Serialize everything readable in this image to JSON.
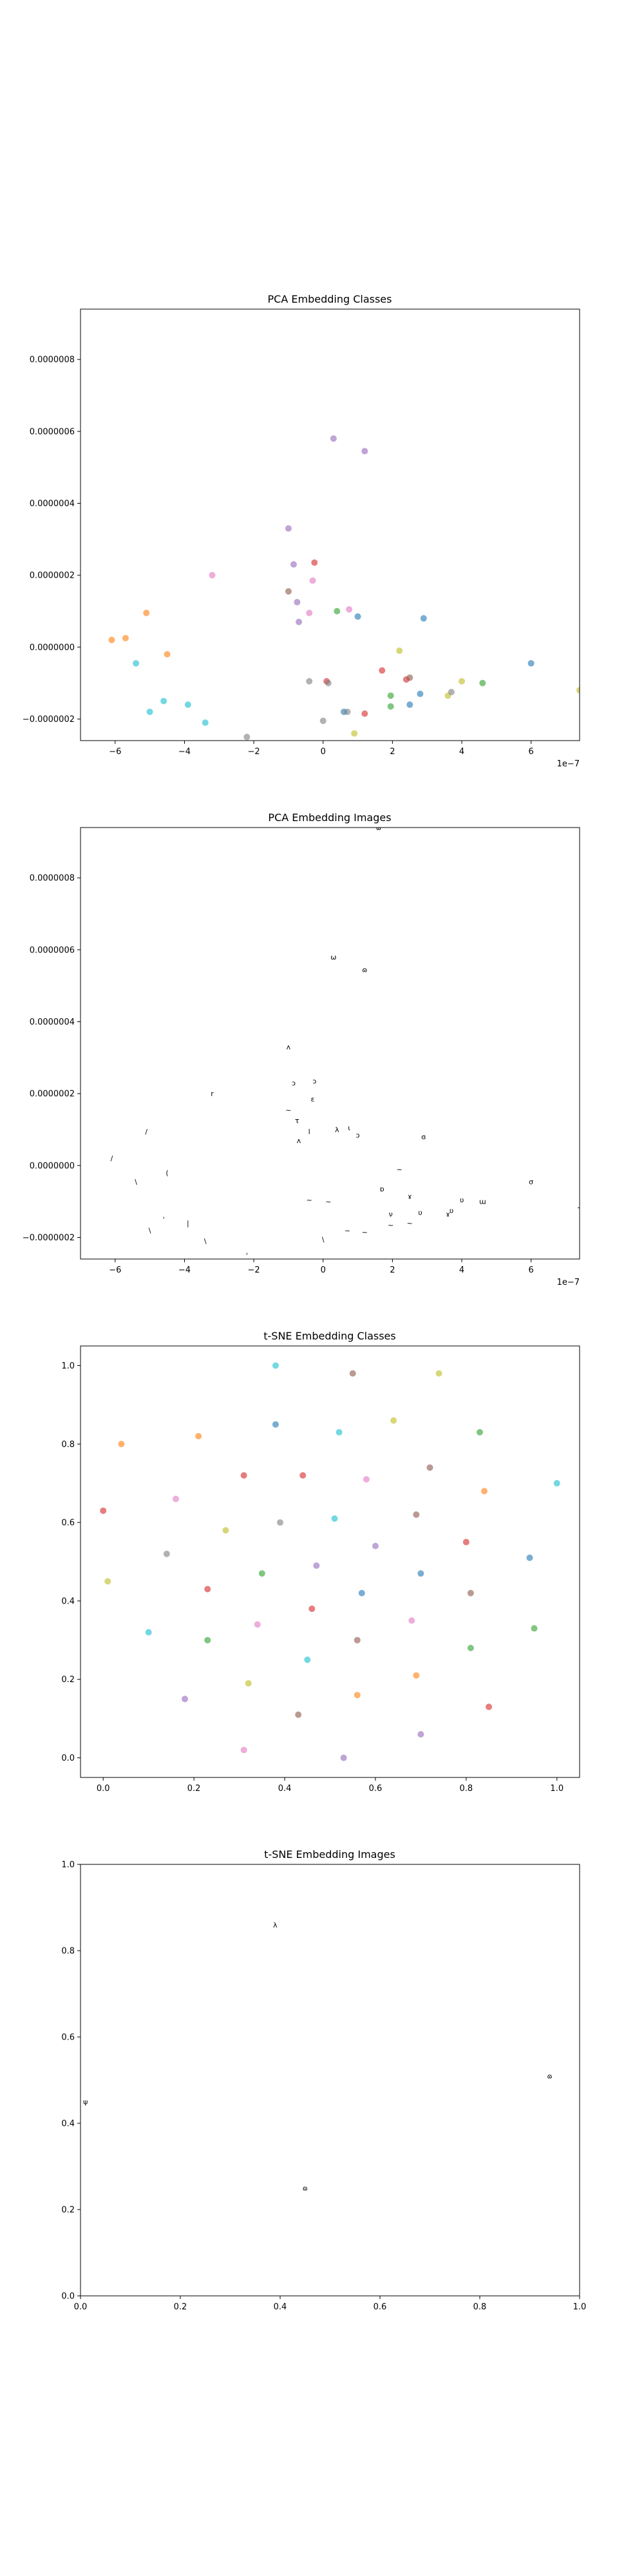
{
  "chart_data": [
    {
      "type": "scatter",
      "title": "PCA Embedding Classes",
      "offset_text": "1e−7",
      "xlim": [
        -7.0,
        7.4
      ],
      "ylim": [
        -2.6,
        9.4
      ],
      "xticks": [
        -6,
        -4,
        -2,
        0,
        2,
        4,
        6
      ],
      "xtick_labels": [
        "−6",
        "−4",
        "−2",
        "0",
        "2",
        "4",
        "6"
      ],
      "yticks": [
        -2,
        0,
        2,
        4,
        6,
        8
      ],
      "ytick_labels": [
        "−0.0000002",
        "0.0000000",
        "0.0000002",
        "0.0000004",
        "0.0000006",
        "0.0000008"
      ],
      "grid": false,
      "points": [
        {
          "x": -6.1,
          "y": 0.2,
          "color": "#ff7f0e"
        },
        {
          "x": -5.7,
          "y": 0.25,
          "color": "#ff7f0e"
        },
        {
          "x": -5.4,
          "y": -0.45,
          "color": "#17becf"
        },
        {
          "x": -5.1,
          "y": 0.95,
          "color": "#ff7f0e"
        },
        {
          "x": -5.0,
          "y": -1.8,
          "color": "#17becf"
        },
        {
          "x": -4.6,
          "y": -1.5,
          "color": "#17becf"
        },
        {
          "x": -4.5,
          "y": -0.2,
          "color": "#ff7f0e"
        },
        {
          "x": -3.9,
          "y": -1.6,
          "color": "#17becf"
        },
        {
          "x": -3.4,
          "y": -2.1,
          "color": "#17becf"
        },
        {
          "x": -3.2,
          "y": 2.0,
          "color": "#e377c2"
        },
        {
          "x": -2.2,
          "y": -2.5,
          "color": "#7f7f7f"
        },
        {
          "x": -1.0,
          "y": 3.3,
          "color": "#9467bd"
        },
        {
          "x": -1.0,
          "y": 1.55,
          "color": "#8c564b"
        },
        {
          "x": -0.85,
          "y": 2.3,
          "color": "#9467bd"
        },
        {
          "x": -0.75,
          "y": 1.25,
          "color": "#9467bd"
        },
        {
          "x": -0.7,
          "y": 0.7,
          "color": "#9467bd"
        },
        {
          "x": -0.4,
          "y": 0.95,
          "color": "#e377c2"
        },
        {
          "x": -0.4,
          "y": -0.95,
          "color": "#7f7f7f"
        },
        {
          "x": -0.3,
          "y": 1.85,
          "color": "#e377c2"
        },
        {
          "x": -0.25,
          "y": 2.35,
          "color": "#d62728"
        },
        {
          "x": 0.0,
          "y": -2.05,
          "color": "#7f7f7f"
        },
        {
          "x": 0.1,
          "y": -0.95,
          "color": "#d62728"
        },
        {
          "x": 0.15,
          "y": -1.0,
          "color": "#7f7f7f"
        },
        {
          "x": 0.3,
          "y": 5.8,
          "color": "#9467bd"
        },
        {
          "x": 0.4,
          "y": 1.0,
          "color": "#2ca02c"
        },
        {
          "x": 0.6,
          "y": -1.8,
          "color": "#1f77b4"
        },
        {
          "x": 0.7,
          "y": -1.8,
          "color": "#7f7f7f"
        },
        {
          "x": 0.75,
          "y": 1.05,
          "color": "#e377c2"
        },
        {
          "x": 0.9,
          "y": -2.4,
          "color": "#bcbd22"
        },
        {
          "x": 1.0,
          "y": 0.85,
          "color": "#1f77b4"
        },
        {
          "x": 1.2,
          "y": -1.85,
          "color": "#d62728"
        },
        {
          "x": 1.2,
          "y": 5.45,
          "color": "#9467bd"
        },
        {
          "x": 1.7,
          "y": -0.65,
          "color": "#d62728"
        },
        {
          "x": 1.95,
          "y": -1.35,
          "color": "#2ca02c"
        },
        {
          "x": 1.95,
          "y": -1.65,
          "color": "#2ca02c"
        },
        {
          "x": 2.2,
          "y": -0.1,
          "color": "#bcbd22"
        },
        {
          "x": 2.4,
          "y": -0.9,
          "color": "#d62728"
        },
        {
          "x": 2.5,
          "y": -0.85,
          "color": "#8c564b"
        },
        {
          "x": 2.5,
          "y": -1.6,
          "color": "#1f77b4"
        },
        {
          "x": 2.8,
          "y": -1.3,
          "color": "#1f77b4"
        },
        {
          "x": 2.9,
          "y": 0.8,
          "color": "#1f77b4"
        },
        {
          "x": 3.6,
          "y": -1.35,
          "color": "#bcbd22"
        },
        {
          "x": 3.7,
          "y": -1.25,
          "color": "#7f7f7f"
        },
        {
          "x": 4.0,
          "y": -0.95,
          "color": "#bcbd22"
        },
        {
          "x": 4.6,
          "y": -1.0,
          "color": "#2ca02c"
        },
        {
          "x": 6.0,
          "y": -0.45,
          "color": "#1f77b4"
        },
        {
          "x": 7.4,
          "y": -1.2,
          "color": "#bcbd22"
        }
      ]
    },
    {
      "type": "scatter",
      "title": "PCA Embedding Images",
      "offset_text": "1e−7",
      "xlim": [
        -7.0,
        7.4
      ],
      "ylim": [
        -2.6,
        9.4
      ],
      "xticks": [
        -6,
        -4,
        -2,
        0,
        2,
        4,
        6
      ],
      "xtick_labels": [
        "−6",
        "−4",
        "−2",
        "0",
        "2",
        "4",
        "6"
      ],
      "yticks": [
        -2,
        0,
        2,
        4,
        6,
        8
      ],
      "ytick_labels": [
        "−0.0000002",
        "0.0000000",
        "0.0000002",
        "0.0000004",
        "0.0000006",
        "0.0000008"
      ],
      "grid": false,
      "points": [
        {
          "x": -6.1,
          "y": 0.2,
          "glyph": "/"
        },
        {
          "x": -5.4,
          "y": -0.45,
          "glyph": "\\"
        },
        {
          "x": -5.1,
          "y": 0.95,
          "glyph": "/"
        },
        {
          "x": -5.0,
          "y": -1.8,
          "glyph": "\\"
        },
        {
          "x": -4.6,
          "y": -1.5,
          "glyph": "'"
        },
        {
          "x": -4.5,
          "y": -0.2,
          "glyph": "("
        },
        {
          "x": -3.9,
          "y": -1.6,
          "glyph": "|"
        },
        {
          "x": -3.4,
          "y": -2.1,
          "glyph": "\\"
        },
        {
          "x": -3.2,
          "y": 2.0,
          "glyph": "r"
        },
        {
          "x": -2.2,
          "y": -2.5,
          "glyph": "'"
        },
        {
          "x": -1.0,
          "y": 3.3,
          "glyph": "ʌ"
        },
        {
          "x": -1.0,
          "y": 1.55,
          "glyph": "~"
        },
        {
          "x": -0.85,
          "y": 2.3,
          "glyph": "ɔ"
        },
        {
          "x": -0.75,
          "y": 1.25,
          "glyph": "τ"
        },
        {
          "x": -0.7,
          "y": 0.7,
          "glyph": "ʌ"
        },
        {
          "x": -0.4,
          "y": 0.95,
          "glyph": "l"
        },
        {
          "x": -0.4,
          "y": -0.95,
          "glyph": "~"
        },
        {
          "x": -0.3,
          "y": 1.85,
          "glyph": "ɛ"
        },
        {
          "x": -0.25,
          "y": 2.35,
          "glyph": "ɔ"
        },
        {
          "x": 0.0,
          "y": -2.05,
          "glyph": "\\"
        },
        {
          "x": 0.15,
          "y": -1.0,
          "glyph": "~"
        },
        {
          "x": 0.3,
          "y": 5.8,
          "glyph": "ω"
        },
        {
          "x": 0.4,
          "y": 1.0,
          "glyph": "λ"
        },
        {
          "x": 0.7,
          "y": -1.8,
          "glyph": "~"
        },
        {
          "x": 0.75,
          "y": 1.05,
          "glyph": "ι"
        },
        {
          "x": 1.0,
          "y": 0.85,
          "glyph": "ɔ"
        },
        {
          "x": 1.2,
          "y": -1.85,
          "glyph": "~"
        },
        {
          "x": 1.2,
          "y": 5.45,
          "glyph": "ɷ"
        },
        {
          "x": 1.7,
          "y": -0.65,
          "glyph": "ɒ"
        },
        {
          "x": 1.95,
          "y": -1.35,
          "glyph": "ν"
        },
        {
          "x": 1.95,
          "y": -1.65,
          "glyph": "~"
        },
        {
          "x": 2.2,
          "y": -0.1,
          "glyph": "~"
        },
        {
          "x": 2.5,
          "y": -0.85,
          "glyph": "ɤ"
        },
        {
          "x": 2.5,
          "y": -1.6,
          "glyph": "~"
        },
        {
          "x": 2.8,
          "y": -1.3,
          "glyph": "ʋ"
        },
        {
          "x": 2.9,
          "y": 0.8,
          "glyph": "ɞ"
        },
        {
          "x": 3.6,
          "y": -1.35,
          "glyph": "ɤ"
        },
        {
          "x": 3.7,
          "y": -1.25,
          "glyph": "ʋ"
        },
        {
          "x": 4.0,
          "y": -0.95,
          "glyph": "ʋ"
        },
        {
          "x": 4.6,
          "y": -1.0,
          "glyph": "ɯ"
        },
        {
          "x": 6.0,
          "y": -0.45,
          "glyph": "σ"
        },
        {
          "x": 7.4,
          "y": -1.2,
          "glyph": "τ"
        },
        {
          "x": 1.6,
          "y": 9.4,
          "glyph": "ɷ"
        }
      ]
    },
    {
      "type": "scatter",
      "title": "t-SNE Embedding Classes",
      "xlim": [
        -0.05,
        1.05
      ],
      "ylim": [
        -0.05,
        1.05
      ],
      "xticks": [
        0.0,
        0.2,
        0.4,
        0.6,
        0.8,
        1.0
      ],
      "xtick_labels": [
        "0.0",
        "0.2",
        "0.4",
        "0.6",
        "0.8",
        "1.0"
      ],
      "yticks": [
        0.0,
        0.2,
        0.4,
        0.6,
        0.8,
        1.0
      ],
      "ytick_labels": [
        "0.0",
        "0.2",
        "0.4",
        "0.6",
        "0.8",
        "1.0"
      ],
      "grid": false,
      "points": [
        {
          "x": 0.0,
          "y": 0.63,
          "color": "#d62728"
        },
        {
          "x": 0.01,
          "y": 0.45,
          "color": "#bcbd22"
        },
        {
          "x": 0.04,
          "y": 0.8,
          "color": "#ff7f0e"
        },
        {
          "x": 0.1,
          "y": 0.32,
          "color": "#17becf"
        },
        {
          "x": 0.14,
          "y": 0.52,
          "color": "#7f7f7f"
        },
        {
          "x": 0.16,
          "y": 0.66,
          "color": "#e377c2"
        },
        {
          "x": 0.18,
          "y": 0.15,
          "color": "#9467bd"
        },
        {
          "x": 0.21,
          "y": 0.82,
          "color": "#ff7f0e"
        },
        {
          "x": 0.23,
          "y": 0.43,
          "color": "#d62728"
        },
        {
          "x": 0.23,
          "y": 0.3,
          "color": "#2ca02c"
        },
        {
          "x": 0.27,
          "y": 0.58,
          "color": "#bcbd22"
        },
        {
          "x": 0.31,
          "y": 0.02,
          "color": "#e377c2"
        },
        {
          "x": 0.31,
          "y": 0.72,
          "color": "#d62728"
        },
        {
          "x": 0.32,
          "y": 0.19,
          "color": "#bcbd22"
        },
        {
          "x": 0.34,
          "y": 0.34,
          "color": "#e377c2"
        },
        {
          "x": 0.35,
          "y": 0.47,
          "color": "#2ca02c"
        },
        {
          "x": 0.38,
          "y": 1.0,
          "color": "#17becf"
        },
        {
          "x": 0.38,
          "y": 0.85,
          "color": "#1f77b4"
        },
        {
          "x": 0.39,
          "y": 0.6,
          "color": "#7f7f7f"
        },
        {
          "x": 0.43,
          "y": 0.11,
          "color": "#8c564b"
        },
        {
          "x": 0.44,
          "y": 0.72,
          "color": "#d62728"
        },
        {
          "x": 0.45,
          "y": 0.25,
          "color": "#17becf"
        },
        {
          "x": 0.46,
          "y": 0.38,
          "color": "#d62728"
        },
        {
          "x": 0.47,
          "y": 0.49,
          "color": "#9467bd"
        },
        {
          "x": 0.51,
          "y": 0.61,
          "color": "#17becf"
        },
        {
          "x": 0.52,
          "y": 0.83,
          "color": "#17becf"
        },
        {
          "x": 0.53,
          "y": 0.0,
          "color": "#9467bd"
        },
        {
          "x": 0.55,
          "y": 0.98,
          "color": "#8c564b"
        },
        {
          "x": 0.56,
          "y": 0.16,
          "color": "#ff7f0e"
        },
        {
          "x": 0.56,
          "y": 0.3,
          "color": "#8c564b"
        },
        {
          "x": 0.57,
          "y": 0.42,
          "color": "#1f77b4"
        },
        {
          "x": 0.58,
          "y": 0.71,
          "color": "#e377c2"
        },
        {
          "x": 0.6,
          "y": 0.54,
          "color": "#9467bd"
        },
        {
          "x": 0.64,
          "y": 0.86,
          "color": "#bcbd22"
        },
        {
          "x": 0.68,
          "y": 0.35,
          "color": "#e377c2"
        },
        {
          "x": 0.69,
          "y": 0.62,
          "color": "#8c564b"
        },
        {
          "x": 0.69,
          "y": 0.21,
          "color": "#ff7f0e"
        },
        {
          "x": 0.7,
          "y": 0.47,
          "color": "#1f77b4"
        },
        {
          "x": 0.7,
          "y": 0.06,
          "color": "#9467bd"
        },
        {
          "x": 0.72,
          "y": 0.74,
          "color": "#8c564b"
        },
        {
          "x": 0.74,
          "y": 0.98,
          "color": "#bcbd22"
        },
        {
          "x": 0.8,
          "y": 0.55,
          "color": "#d62728"
        },
        {
          "x": 0.81,
          "y": 0.42,
          "color": "#8c564b"
        },
        {
          "x": 0.81,
          "y": 0.28,
          "color": "#2ca02c"
        },
        {
          "x": 0.83,
          "y": 0.83,
          "color": "#2ca02c"
        },
        {
          "x": 0.84,
          "y": 0.68,
          "color": "#ff7f0e"
        },
        {
          "x": 0.85,
          "y": 0.13,
          "color": "#d62728"
        },
        {
          "x": 0.94,
          "y": 0.51,
          "color": "#1f77b4"
        },
        {
          "x": 0.95,
          "y": 0.33,
          "color": "#2ca02c"
        },
        {
          "x": 1.0,
          "y": 0.7,
          "color": "#17becf"
        }
      ]
    },
    {
      "type": "scatter",
      "title": "t-SNE Embedding Images",
      "xlim": [
        0.0,
        1.0
      ],
      "ylim": [
        0.0,
        1.0
      ],
      "xticks": [
        0.0,
        0.2,
        0.4,
        0.6,
        0.8,
        1.0
      ],
      "xtick_labels": [
        "0.0",
        "0.2",
        "0.4",
        "0.6",
        "0.8",
        "1.0"
      ],
      "yticks": [
        0.0,
        0.2,
        0.4,
        0.6,
        0.8,
        1.0
      ],
      "ytick_labels": [
        "0.0",
        "0.2",
        "0.4",
        "0.6",
        "0.8",
        "1.0"
      ],
      "grid": false,
      "points": [
        {
          "x": 0.39,
          "y": 0.86,
          "glyph": "λ"
        },
        {
          "x": 0.01,
          "y": 0.45,
          "glyph": "ψ"
        },
        {
          "x": 0.45,
          "y": 0.25,
          "glyph": "ɷ"
        },
        {
          "x": 0.94,
          "y": 0.51,
          "glyph": "ɷ"
        }
      ]
    }
  ]
}
